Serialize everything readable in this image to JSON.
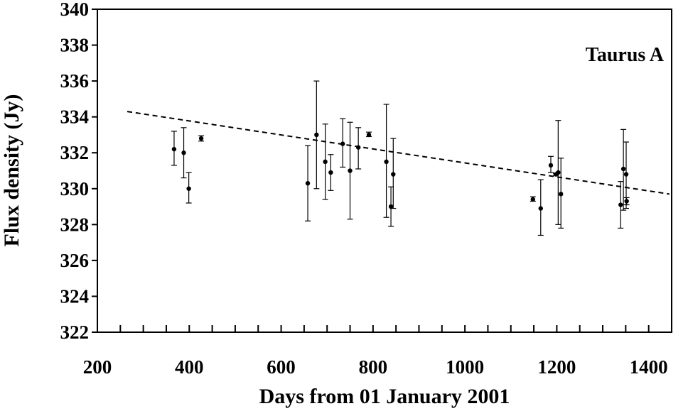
{
  "chart_data": {
    "type": "scatter",
    "title": "",
    "xlabel": "Days from 01 January 2001",
    "ylabel": "Flux density (Jy)",
    "annotation": "Taurus A",
    "xlim": [
      200,
      1450
    ],
    "ylim": [
      322,
      340
    ],
    "x_major_ticks": [
      200,
      400,
      600,
      800,
      1000,
      1200,
      1400
    ],
    "x_minor_step": 50,
    "y_ticks": [
      322,
      324,
      326,
      328,
      330,
      332,
      334,
      336,
      338,
      340
    ],
    "grid": false,
    "legend": "none",
    "points": [
      {
        "x": 367,
        "y": 332.2,
        "err_lo": 331.3,
        "err_hi": 333.2
      },
      {
        "x": 388,
        "y": 332.0,
        "err_lo": 330.6,
        "err_hi": 333.4
      },
      {
        "x": 399,
        "y": 330.0,
        "err_lo": 329.2,
        "err_hi": 330.9
      },
      {
        "x": 426,
        "y": 332.8,
        "err_lo": 332.65,
        "err_hi": 332.95
      },
      {
        "x": 658,
        "y": 330.3,
        "err_lo": 328.2,
        "err_hi": 332.4
      },
      {
        "x": 677,
        "y": 333.0,
        "err_lo": 330.0,
        "err_hi": 336.0
      },
      {
        "x": 696,
        "y": 331.5,
        "err_lo": 329.4,
        "err_hi": 333.6
      },
      {
        "x": 708,
        "y": 330.9,
        "err_lo": 329.9,
        "err_hi": 331.9
      },
      {
        "x": 734,
        "y": 332.5,
        "err_lo": 331.2,
        "err_hi": 333.9
      },
      {
        "x": 750,
        "y": 331.0,
        "err_lo": 328.3,
        "err_hi": 333.7
      },
      {
        "x": 768,
        "y": 332.3,
        "err_lo": 331.1,
        "err_hi": 333.4
      },
      {
        "x": 791,
        "y": 333.0,
        "err_lo": 332.9,
        "err_hi": 333.15
      },
      {
        "x": 829,
        "y": 331.5,
        "err_lo": 328.4,
        "err_hi": 334.7
      },
      {
        "x": 839,
        "y": 329.0,
        "err_lo": 327.9,
        "err_hi": 330.1
      },
      {
        "x": 844,
        "y": 330.8,
        "err_lo": 328.9,
        "err_hi": 332.8
      },
      {
        "x": 1148,
        "y": 329.4,
        "err_lo": 329.3,
        "err_hi": 329.55
      },
      {
        "x": 1165,
        "y": 328.9,
        "err_lo": 327.4,
        "err_hi": 330.5
      },
      {
        "x": 1187,
        "y": 331.3,
        "err_lo": 330.9,
        "err_hi": 331.8
      },
      {
        "x": 1198,
        "y": 330.8,
        "err_lo": 330.75,
        "err_hi": 330.85
      },
      {
        "x": 1203,
        "y": 330.9,
        "err_lo": 328.0,
        "err_hi": 333.8
      },
      {
        "x": 1209,
        "y": 329.7,
        "err_lo": 327.8,
        "err_hi": 331.7
      },
      {
        "x": 1339,
        "y": 329.1,
        "err_lo": 327.8,
        "err_hi": 330.4
      },
      {
        "x": 1345,
        "y": 331.1,
        "err_lo": 328.8,
        "err_hi": 333.3
      },
      {
        "x": 1351,
        "y": 330.8,
        "err_lo": 328.9,
        "err_hi": 332.6
      },
      {
        "x": 1352,
        "y": 329.3,
        "err_lo": 329.1,
        "err_hi": 329.5
      }
    ],
    "trend_line": {
      "style": "dashed",
      "x": [
        265,
        1445
      ],
      "y": [
        334.3,
        329.7
      ]
    }
  }
}
